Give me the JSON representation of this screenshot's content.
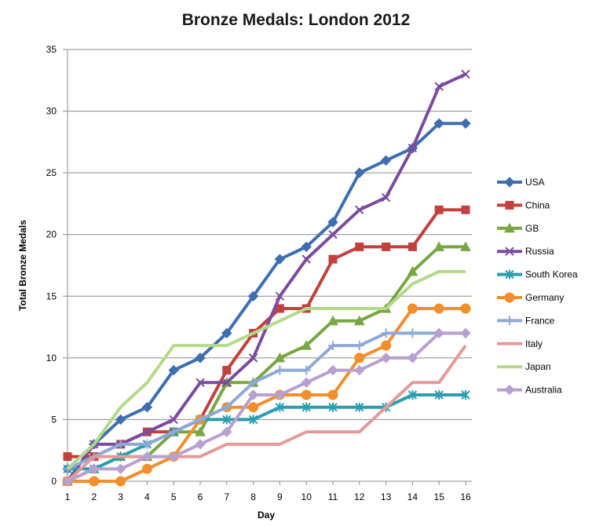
{
  "chart_data": {
    "type": "line",
    "title": "Bronze Medals: London 2012",
    "xlabel": "Day",
    "ylabel": "Total Bronze Medals",
    "x": [
      1,
      2,
      3,
      4,
      5,
      6,
      7,
      8,
      9,
      10,
      11,
      12,
      13,
      14,
      15,
      16
    ],
    "xlim": [
      1,
      16
    ],
    "ylim": [
      0,
      35
    ],
    "y_ticks": [
      0,
      5,
      10,
      15,
      20,
      25,
      30,
      35
    ],
    "grid": "horizontal",
    "legend_position": "right",
    "series": [
      {
        "name": "USA",
        "color": "#3F6EAE",
        "marker": "diamond",
        "values": [
          1,
          3,
          5,
          6,
          9,
          10,
          12,
          15,
          18,
          19,
          21,
          25,
          26,
          27,
          29,
          29
        ]
      },
      {
        "name": "China",
        "color": "#C2403D",
        "marker": "square",
        "values": [
          2,
          2,
          3,
          4,
          4,
          5,
          9,
          12,
          14,
          14,
          18,
          19,
          19,
          19,
          22,
          22
        ]
      },
      {
        "name": "GB",
        "color": "#77A642",
        "marker": "triangle",
        "values": [
          0,
          1,
          2,
          2,
          4,
          4,
          8,
          8,
          10,
          11,
          13,
          13,
          14,
          17,
          19,
          19
        ]
      },
      {
        "name": "Russia",
        "color": "#7B4C9E",
        "marker": "x",
        "values": [
          0,
          3,
          3,
          4,
          5,
          8,
          8,
          10,
          15,
          18,
          20,
          22,
          23,
          27,
          32,
          33
        ]
      },
      {
        "name": "South Korea",
        "color": "#2A9DAE",
        "marker": "asterisk",
        "values": [
          1,
          1,
          2,
          3,
          4,
          5,
          5,
          5,
          6,
          6,
          6,
          6,
          6,
          7,
          7,
          7
        ]
      },
      {
        "name": "Germany",
        "color": "#F28E2B",
        "marker": "circle",
        "values": [
          0,
          0,
          0,
          1,
          2,
          5,
          6,
          6,
          7,
          7,
          7,
          10,
          11,
          14,
          14,
          14
        ]
      },
      {
        "name": "France",
        "color": "#8EA9D8",
        "marker": "plus",
        "values": [
          1,
          2,
          3,
          3,
          4,
          5,
          6,
          8,
          9,
          9,
          11,
          11,
          12,
          12,
          12,
          12
        ]
      },
      {
        "name": "Italy",
        "color": "#E59A9A",
        "marker": "none",
        "values": [
          0,
          2,
          2,
          2,
          2,
          2,
          3,
          3,
          3,
          4,
          4,
          4,
          6,
          8,
          8,
          11
        ]
      },
      {
        "name": "Japan",
        "color": "#B5D98A",
        "marker": "none",
        "values": [
          1,
          3,
          6,
          8,
          11,
          11,
          11,
          12,
          13,
          14,
          14,
          14,
          14,
          16,
          17,
          17
        ]
      },
      {
        "name": "Australia",
        "color": "#B8A0D0",
        "marker": "diamond",
        "values": [
          0,
          1,
          1,
          2,
          2,
          3,
          4,
          7,
          7,
          8,
          9,
          9,
          10,
          10,
          12,
          12
        ]
      }
    ]
  }
}
